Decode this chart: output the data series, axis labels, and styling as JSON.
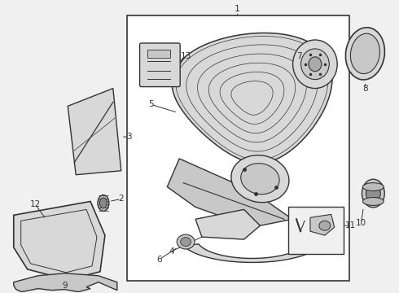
{
  "bg_color": "#f0f0f0",
  "box_color": "#ffffff",
  "line_color": "#333333",
  "part_fill": "#d8d8d8",
  "part_fill2": "#c8c8c8",
  "part_fill3": "#e8e8e8"
}
